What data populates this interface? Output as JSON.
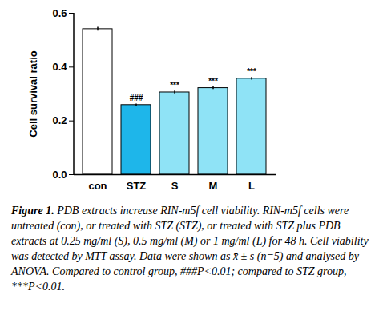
{
  "chart_data": {
    "type": "bar",
    "y_label": "Cell survival ratio",
    "categories": [
      "con",
      "STZ",
      "S",
      "M",
      "L"
    ],
    "values": [
      0.541,
      0.259,
      0.306,
      0.322,
      0.357
    ],
    "errors": [
      0.007,
      0.004,
      0.005,
      0.005,
      0.005
    ],
    "colors": [
      "#ffffff",
      "#1eb6ea",
      "#8fe3f6",
      "#8fe3f6",
      "#8fe3f6"
    ],
    "annotations": [
      {
        "category": "STZ",
        "text": "###"
      },
      {
        "category": "S",
        "text": "***"
      },
      {
        "category": "M",
        "text": "***"
      },
      {
        "category": "L",
        "text": "***"
      }
    ],
    "ylim": [
      0,
      0.6
    ],
    "yticks": [
      {
        "value": 0,
        "label": "0.0"
      },
      0.2,
      0.4,
      0.6
    ],
    "grid": false
  },
  "caption": {
    "label": "Figure 1.",
    "text": "PDB extracts increase RIN-m5f cell viability. RIN-m5f cells were untreated (con), or treated with STZ (STZ), or treated with STZ plus PDB extracts at 0.25 mg/ml (S), 0.5 mg/ml (M) or 1 mg/ml (L) for 48 h. Cell viability was detected by MTT assay. Data were shown as x̄ ± s (n=5) and analysed by ANOVA. Compared to control group, ###P<0.01; compared to STZ group, ***P<0.01."
  }
}
